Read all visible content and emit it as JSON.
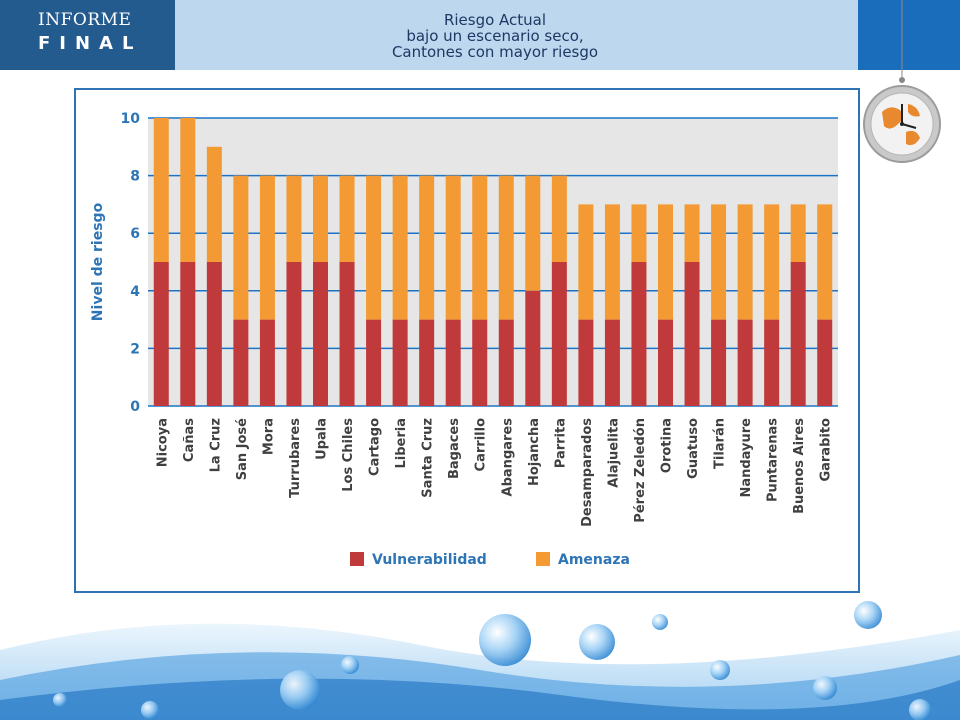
{
  "header": {
    "logo_line1": "INFORME",
    "logo_line2": "FINAL",
    "title_line1": "Riesgo Actual",
    "title_line2": "bajo un escenario seco,",
    "title_line3": "Cantones con mayor riesgo"
  },
  "colors": {
    "vulnerabilidad": "#c0393b",
    "amenaza": "#f39a34",
    "plot_bg": "#e6e6e6",
    "grid": "#1a73c7",
    "axis_text": "#2e75b6",
    "header_bg": "#bdd7ee",
    "logo_bg": "#245b8e"
  },
  "chart_data": {
    "type": "bar",
    "stacked": true,
    "categories": [
      "Nicoya",
      "Cañas",
      "La Cruz",
      "San José",
      "Mora",
      "Turrubares",
      "Upala",
      "Los Chiles",
      "Cartago",
      "Liberia",
      "Santa Cruz",
      "Bagaces",
      "Carrillo",
      "Abangares",
      "Hojancha",
      "Parrita",
      "Desamparados",
      "Alajuelita",
      "Pérez Zeledón",
      "Orotina",
      "Guatuso",
      "Tilarán",
      "Nandayure",
      "Puntarenas",
      "Buenos Aires",
      "Garabito"
    ],
    "series": [
      {
        "name": "Vulnerabilidad",
        "values": [
          5,
          5,
          5,
          3,
          3,
          5,
          5,
          5,
          3,
          3,
          3,
          3,
          3,
          3,
          4,
          5,
          3,
          3,
          5,
          3,
          5,
          3,
          3,
          3,
          5,
          3
        ]
      },
      {
        "name": "Amenaza",
        "values": [
          5,
          5,
          4,
          5,
          5,
          3,
          3,
          3,
          5,
          5,
          5,
          5,
          5,
          5,
          4,
          3,
          4,
          4,
          2,
          4,
          2,
          4,
          4,
          4,
          2,
          4
        ]
      }
    ],
    "ylabel": "Nivel de riesgo",
    "ylim": [
      0,
      10
    ],
    "yticks": [
      0,
      2,
      4,
      6,
      8,
      10
    ],
    "grid": true,
    "legend_position": "bottom"
  }
}
